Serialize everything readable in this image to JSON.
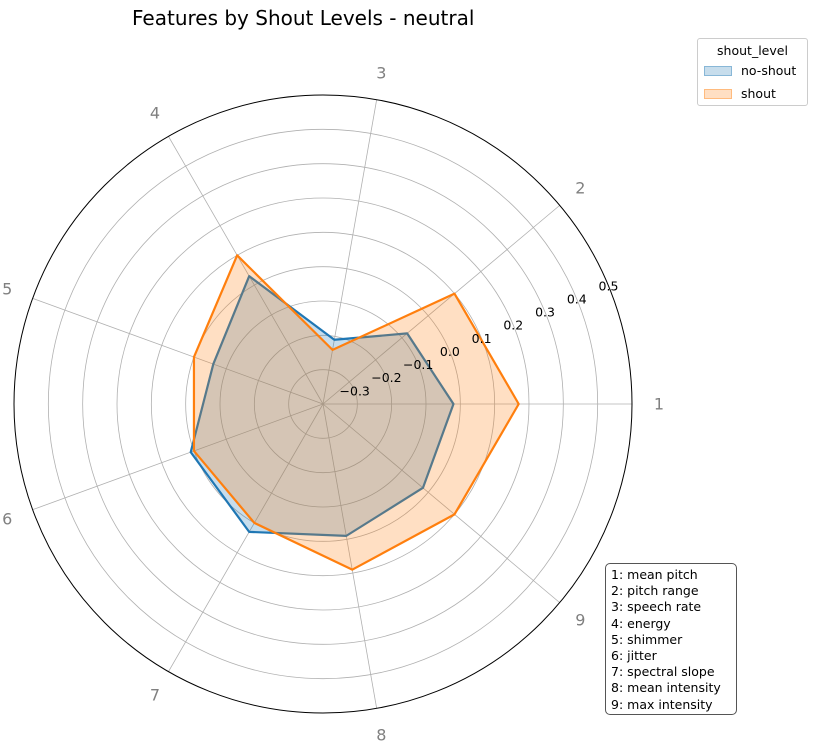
{
  "chart_data": {
    "type": "radar",
    "title": "Features by Shout Levels - neutral",
    "categories": [
      "1",
      "2",
      "3",
      "4",
      "5",
      "6",
      "7",
      "8",
      "9"
    ],
    "radial_ticks": [
      -0.3,
      -0.2,
      -0.1,
      0.0,
      0.1,
      0.2,
      0.3,
      0.4,
      0.5
    ],
    "radial_tick_labels": [
      "−0.3",
      "−0.2",
      "−0.1",
      "0.0",
      "0.1",
      "0.2",
      "0.3",
      "0.4",
      "0.5"
    ],
    "rlim": [
      -0.4,
      0.5
    ],
    "grid": true,
    "legend": {
      "title": "shout_level",
      "placement": "top-right-outside"
    },
    "series": [
      {
        "name": "no-shout",
        "color": "#1f77b4",
        "values": [
          -0.02,
          -0.08,
          -0.21,
          0.03,
          -0.06,
          0.01,
          0.03,
          -0.01,
          -0.02
        ]
      },
      {
        "name": "shout",
        "color": "#ff7f0e",
        "values": [
          0.17,
          0.1,
          -0.24,
          0.1,
          0.0,
          0.0,
          0.0,
          0.09,
          0.1
        ]
      }
    ],
    "key": [
      "1: mean pitch",
      "2: pitch range",
      "3: speech rate",
      "4: energy",
      "5: shimmer",
      "6: jitter",
      "7: spectral slope",
      "8: mean intensity",
      "9: max intensity"
    ]
  }
}
